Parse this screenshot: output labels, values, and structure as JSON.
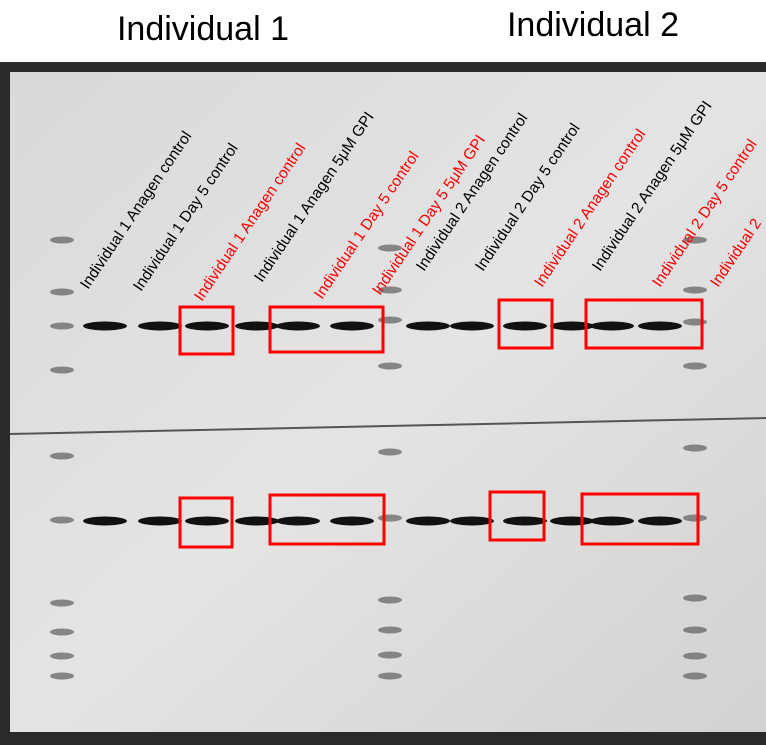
{
  "header": {
    "left": "Individual 1",
    "right": "Individual 2"
  },
  "lanes": [
    {
      "label": "Individual 1 Anagen control",
      "color": "#000000"
    },
    {
      "label": "Individual 1 Day 5 control",
      "color": "#000000"
    },
    {
      "label": "Individual 1 Anagen control",
      "color": "#ff0000"
    },
    {
      "label": "Individual 1 Anagen 5μM GPI",
      "color": "#000000"
    },
    {
      "label": "Individual 1 Day 5 control",
      "color": "#ff0000"
    },
    {
      "label": "Individual 1 Day 5 5μM GPI",
      "color": "#ff0000"
    },
    {
      "label": "Individual 2 Anagen control",
      "color": "#000000"
    },
    {
      "label": "Individual 2 Day 5 control",
      "color": "#000000"
    },
    {
      "label": "Individual 2 Anagen control",
      "color": "#ff0000"
    },
    {
      "label": "Individual 2 Anagen 5μM GPI",
      "color": "#000000"
    },
    {
      "label": "Individual 2 Day 5 control",
      "color": "#ff0000"
    },
    {
      "label": "Individual 2",
      "color": "#ff0000"
    }
  ]
}
